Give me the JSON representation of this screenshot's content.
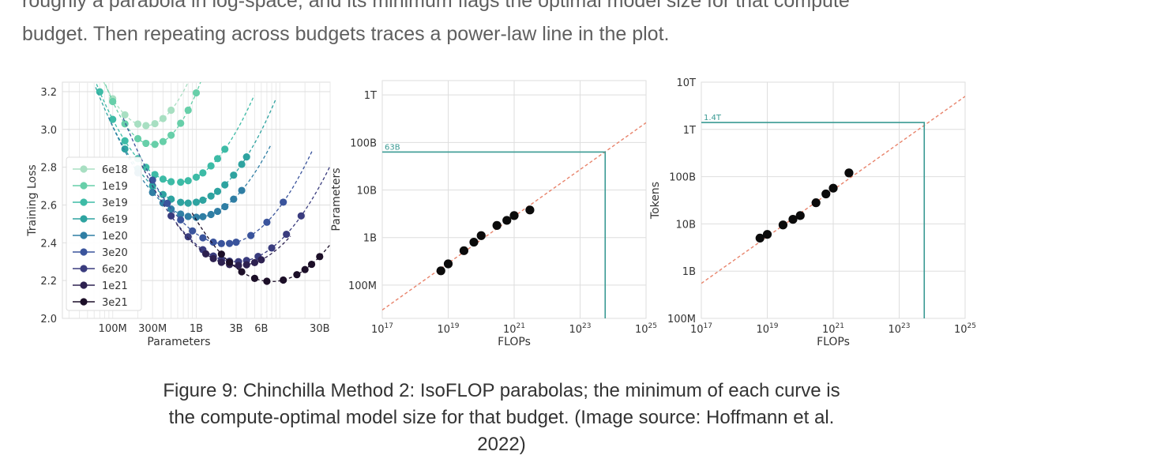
{
  "paragraph": {
    "line1": "roughly a parabola in log-space, and its minimum flags the optimal model size for that compute",
    "line2": "budget. Then repeating across budgets traces a power-law line in the plot."
  },
  "caption": {
    "line1": "Figure 9: Chinchilla Method 2: IsoFLOP parabolas; the minimum of each curve is",
    "line2": "the compute-optimal model size for that budget. (Image source: Hoffmann et al.",
    "line3": "2022)"
  },
  "chart_data": [
    {
      "type": "line",
      "xlabel": "Parameters",
      "ylabel": "Training Loss",
      "x_scale": "log",
      "xlim": [
        25000000,
        40000000000
      ],
      "ylim": [
        2.0,
        3.25
      ],
      "x_ticks": [
        {
          "v": 100000000,
          "label": "100M"
        },
        {
          "v": 300000000,
          "label": "300M"
        },
        {
          "v": 1000000000,
          "label": "1B"
        },
        {
          "v": 3000000000,
          "label": "3B"
        },
        {
          "v": 6000000000,
          "label": "6B"
        },
        {
          "v": 30000000000,
          "label": "30B"
        }
      ],
      "y_ticks": [
        2.0,
        2.2,
        2.4,
        2.6,
        2.8,
        3.0,
        3.2
      ],
      "grid": true,
      "legend_position": "left",
      "series": [
        {
          "name": "6e18",
          "color": "#a8dfc2",
          "min_params": 250000000,
          "min_loss": 3.02,
          "curvature": 0.9,
          "x": [
            40000000,
            50000000,
            70000000,
            100000000,
            140000000,
            200000000,
            250000000,
            320000000,
            400000000,
            500000000
          ]
        },
        {
          "name": "1e19",
          "color": "#67cfa9",
          "min_params": 300000000,
          "min_loss": 2.92,
          "curvature": 1.0,
          "x": [
            70000000,
            100000000,
            140000000,
            200000000,
            250000000,
            320000000,
            400000000,
            500000000,
            650000000,
            800000000,
            1000000000,
            1200000000,
            1500000000,
            1800000000
          ]
        },
        {
          "name": "3e19",
          "color": "#3dbba6",
          "min_params": 600000000,
          "min_loss": 2.72,
          "curvature": 0.55,
          "x": [
            70000000,
            100000000,
            140000000,
            200000000,
            250000000,
            320000000,
            400000000,
            500000000,
            650000000,
            800000000,
            1000000000,
            1200000000,
            1500000000,
            1800000000,
            2200000000
          ]
        },
        {
          "name": "6e19",
          "color": "#2ea3a0",
          "min_params": 800000000,
          "min_loss": 2.61,
          "curvature": 0.5,
          "x": [
            140000000,
            200000000,
            300000000,
            400000000,
            500000000,
            650000000,
            800000000,
            1000000000,
            1200000000,
            1500000000,
            1800000000,
            2200000000,
            2800000000,
            3500000000,
            4000000000
          ]
        },
        {
          "name": "1e20",
          "color": "#2f7ea4",
          "min_params": 1000000000,
          "min_loss": 2.535,
          "curvature": 0.48,
          "x": [
            200000000,
            300000000,
            400000000,
            500000000,
            650000000,
            800000000,
            1000000000,
            1200000000,
            1500000000,
            1800000000,
            2200000000,
            2800000000,
            3500000000
          ]
        },
        {
          "name": "3e20",
          "color": "#3a549c",
          "min_params": 2200000000,
          "min_loss": 2.395,
          "curvature": 0.45,
          "x": [
            300000000,
            450000000,
            650000000,
            900000000,
            1200000000,
            1600000000,
            2000000000,
            2500000000,
            3000000000,
            4500000000,
            7000000000,
            11000000000
          ]
        },
        {
          "name": "6e20",
          "color": "#3a3c7e",
          "min_params": 3000000000,
          "min_loss": 2.3,
          "curvature": 0.4,
          "x": [
            500000000,
            800000000,
            1200000000,
            1600000000,
            2000000000,
            2500000000,
            3200000000,
            4000000000,
            5500000000,
            8000000000,
            12000000000,
            18000000000
          ]
        },
        {
          "name": "1e21",
          "color": "#2d2150",
          "min_params": 3200000000,
          "min_loss": 2.28,
          "curvature": 0.4,
          "x": [
            1300000000,
            1600000000,
            2000000000,
            2500000000,
            3200000000,
            4000000000,
            5000000000,
            6000000000
          ]
        },
        {
          "name": "3e21",
          "color": "#1c0f28",
          "min_params": 8000000000,
          "min_loss": 2.195,
          "curvature": 0.4,
          "x": [
            2000000000,
            2500000000,
            3500000000,
            5000000000,
            7000000000,
            11000000000,
            16000000000,
            20000000000,
            24000000000,
            30000000000
          ]
        }
      ]
    },
    {
      "type": "scatter",
      "xlabel": "FLOPs",
      "ylabel": "Parameters",
      "x_scale": "log",
      "y_scale": "log",
      "xlim": [
        1e+17,
        1e+25
      ],
      "ylim": [
        20000000,
        2000000000000
      ],
      "x_ticks": [
        {
          "v": 1e+17,
          "sup": "17"
        },
        {
          "v": 1e+19,
          "sup": "19"
        },
        {
          "v": 1e+21,
          "sup": "21"
        },
        {
          "v": 1e+23,
          "sup": "23"
        },
        {
          "v": 1e+25,
          "sup": "25"
        }
      ],
      "y_ticks": [
        {
          "v": 100000000,
          "label": "100M"
        },
        {
          "v": 1000000000,
          "label": "1B"
        },
        {
          "v": 10000000000,
          "label": "10B"
        },
        {
          "v": 100000000000,
          "label": "100B"
        },
        {
          "v": 1000000000000,
          "label": "1T"
        }
      ],
      "grid": true,
      "points": [
        {
          "x": 6e+18,
          "y": 200000000
        },
        {
          "x": 1e+19,
          "y": 280000000
        },
        {
          "x": 3e+19,
          "y": 530000000
        },
        {
          "x": 6e+19,
          "y": 800000000
        },
        {
          "x": 1e+20,
          "y": 1100000000
        },
        {
          "x": 3e+20,
          "y": 1800000000
        },
        {
          "x": 6e+20,
          "y": 2300000000
        },
        {
          "x": 1e+21,
          "y": 2900000000
        },
        {
          "x": 3e+21,
          "y": 3800000000
        }
      ],
      "fit_line": {
        "x": [
          1e+17,
          1e+25
        ],
        "y": [
          30000000,
          260000000000
        ],
        "color": "#e8836b",
        "style": "dashed"
      },
      "annotation": {
        "label": "63B",
        "x": 5.76e+23,
        "y": 63000000000,
        "color": "#3a9a93"
      }
    },
    {
      "type": "scatter",
      "xlabel": "FLOPs",
      "ylabel": "Tokens",
      "x_scale": "log",
      "y_scale": "log",
      "xlim": [
        1e+17,
        1e+25
      ],
      "ylim": [
        100000000,
        10000000000000
      ],
      "x_ticks": [
        {
          "v": 1e+17,
          "sup": "17"
        },
        {
          "v": 1e+19,
          "sup": "19"
        },
        {
          "v": 1e+21,
          "sup": "21"
        },
        {
          "v": 1e+23,
          "sup": "23"
        },
        {
          "v": 1e+25,
          "sup": "25"
        }
      ],
      "y_ticks": [
        {
          "v": 100000000,
          "label": "100M"
        },
        {
          "v": 1000000000,
          "label": "1B"
        },
        {
          "v": 10000000000,
          "label": "10B"
        },
        {
          "v": 100000000000,
          "label": "100B"
        },
        {
          "v": 1000000000000,
          "label": "1T"
        },
        {
          "v": 10000000000000,
          "label": "10T"
        }
      ],
      "grid": true,
      "points": [
        {
          "x": 6e+18,
          "y": 5000000000
        },
        {
          "x": 1e+19,
          "y": 6000000000
        },
        {
          "x": 3e+19,
          "y": 9500000000
        },
        {
          "x": 6e+19,
          "y": 12500000000
        },
        {
          "x": 1e+20,
          "y": 15000000000
        },
        {
          "x": 3e+20,
          "y": 28000000000
        },
        {
          "x": 6e+20,
          "y": 43000000000
        },
        {
          "x": 1e+21,
          "y": 57000000000
        },
        {
          "x": 3e+21,
          "y": 120000000000
        }
      ],
      "fit_line": {
        "x": [
          1e+17,
          1e+25
        ],
        "y": [
          550000000,
          5000000000000
        ],
        "color": "#e8836b",
        "style": "dashed"
      },
      "annotation": {
        "label": "1.4T",
        "x": 5.76e+23,
        "y": 1400000000000,
        "color": "#3a9a93"
      }
    }
  ]
}
